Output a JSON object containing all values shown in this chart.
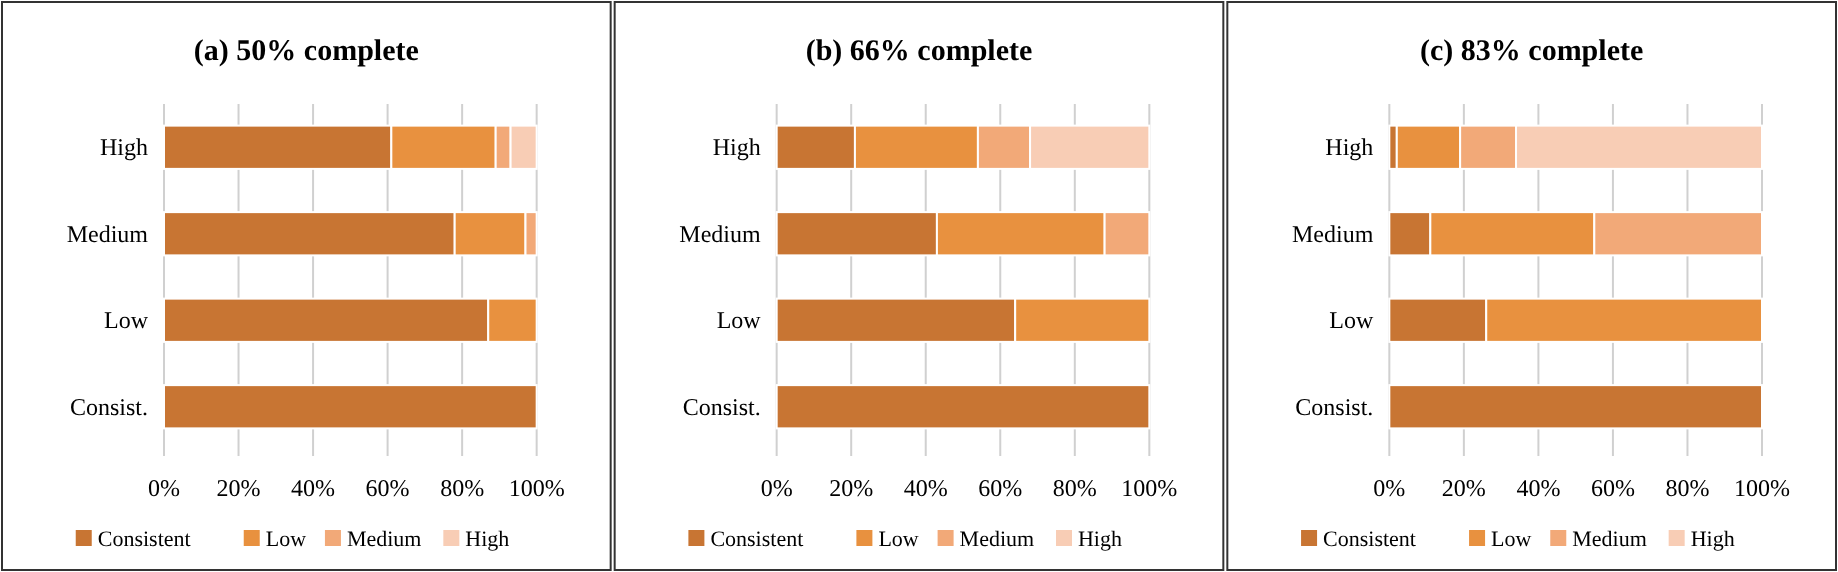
{
  "chart_data": [
    {
      "type": "bar",
      "title": "(a) 50% complete",
      "orientation": "horizontal",
      "stacked": true,
      "categories": [
        "High",
        "Medium",
        "Low",
        "Consist."
      ],
      "xlim": [
        0,
        100
      ],
      "xticks": [
        {
          "value": 0,
          "label": "0%"
        },
        {
          "value": 20,
          "label": "20%"
        },
        {
          "value": 40,
          "label": "40%"
        },
        {
          "value": 60,
          "label": "60%"
        },
        {
          "value": 80,
          "label": "80%"
        },
        {
          "value": 100,
          "label": "100%"
        }
      ],
      "grid": "x",
      "legend": "bottom",
      "series": [
        {
          "name": "Consistent",
          "color": "#c87533",
          "values": [
            61,
            78,
            87,
            100
          ]
        },
        {
          "name": "Low",
          "color": "#e8913f",
          "values": [
            28,
            19,
            13,
            0
          ]
        },
        {
          "name": "Medium",
          "color": "#f2a978",
          "values": [
            4,
            3,
            0,
            0
          ]
        },
        {
          "name": "High",
          "color": "#f8cdb5",
          "values": [
            7,
            0,
            0,
            0
          ]
        }
      ]
    },
    {
      "type": "bar",
      "title": "(b) 66% complete",
      "orientation": "horizontal",
      "stacked": true,
      "categories": [
        "High",
        "Medium",
        "Low",
        "Consist."
      ],
      "xlim": [
        0,
        100
      ],
      "xticks": [
        {
          "value": 0,
          "label": "0%"
        },
        {
          "value": 20,
          "label": "20%"
        },
        {
          "value": 40,
          "label": "40%"
        },
        {
          "value": 60,
          "label": "60%"
        },
        {
          "value": 80,
          "label": "80%"
        },
        {
          "value": 100,
          "label": "100%"
        }
      ],
      "grid": "x",
      "legend": "bottom",
      "series": [
        {
          "name": "Consistent",
          "color": "#c87533",
          "values": [
            21,
            43,
            64,
            100
          ]
        },
        {
          "name": "Low",
          "color": "#e8913f",
          "values": [
            33,
            45,
            36,
            0
          ]
        },
        {
          "name": "Medium",
          "color": "#f2a978",
          "values": [
            14,
            12,
            0,
            0
          ]
        },
        {
          "name": "High",
          "color": "#f8cdb5",
          "values": [
            32,
            0,
            0,
            0
          ]
        }
      ]
    },
    {
      "type": "bar",
      "title": "(c) 83% complete",
      "orientation": "horizontal",
      "stacked": true,
      "categories": [
        "High",
        "Medium",
        "Low",
        "Consist."
      ],
      "xlim": [
        0,
        100
      ],
      "xticks": [
        {
          "value": 0,
          "label": "0%"
        },
        {
          "value": 20,
          "label": "20%"
        },
        {
          "value": 40,
          "label": "40%"
        },
        {
          "value": 60,
          "label": "60%"
        },
        {
          "value": 80,
          "label": "80%"
        },
        {
          "value": 100,
          "label": "100%"
        }
      ],
      "grid": "x",
      "legend": "bottom",
      "series": [
        {
          "name": "Consistent",
          "color": "#c87533",
          "values": [
            2,
            11,
            26,
            100
          ]
        },
        {
          "name": "Low",
          "color": "#e8913f",
          "values": [
            17,
            44,
            74,
            0
          ]
        },
        {
          "name": "Medium",
          "color": "#f2a978",
          "values": [
            15,
            45,
            0,
            0
          ]
        },
        {
          "name": "High",
          "color": "#f8cdb5",
          "values": [
            66,
            0,
            0,
            0
          ]
        }
      ]
    }
  ]
}
